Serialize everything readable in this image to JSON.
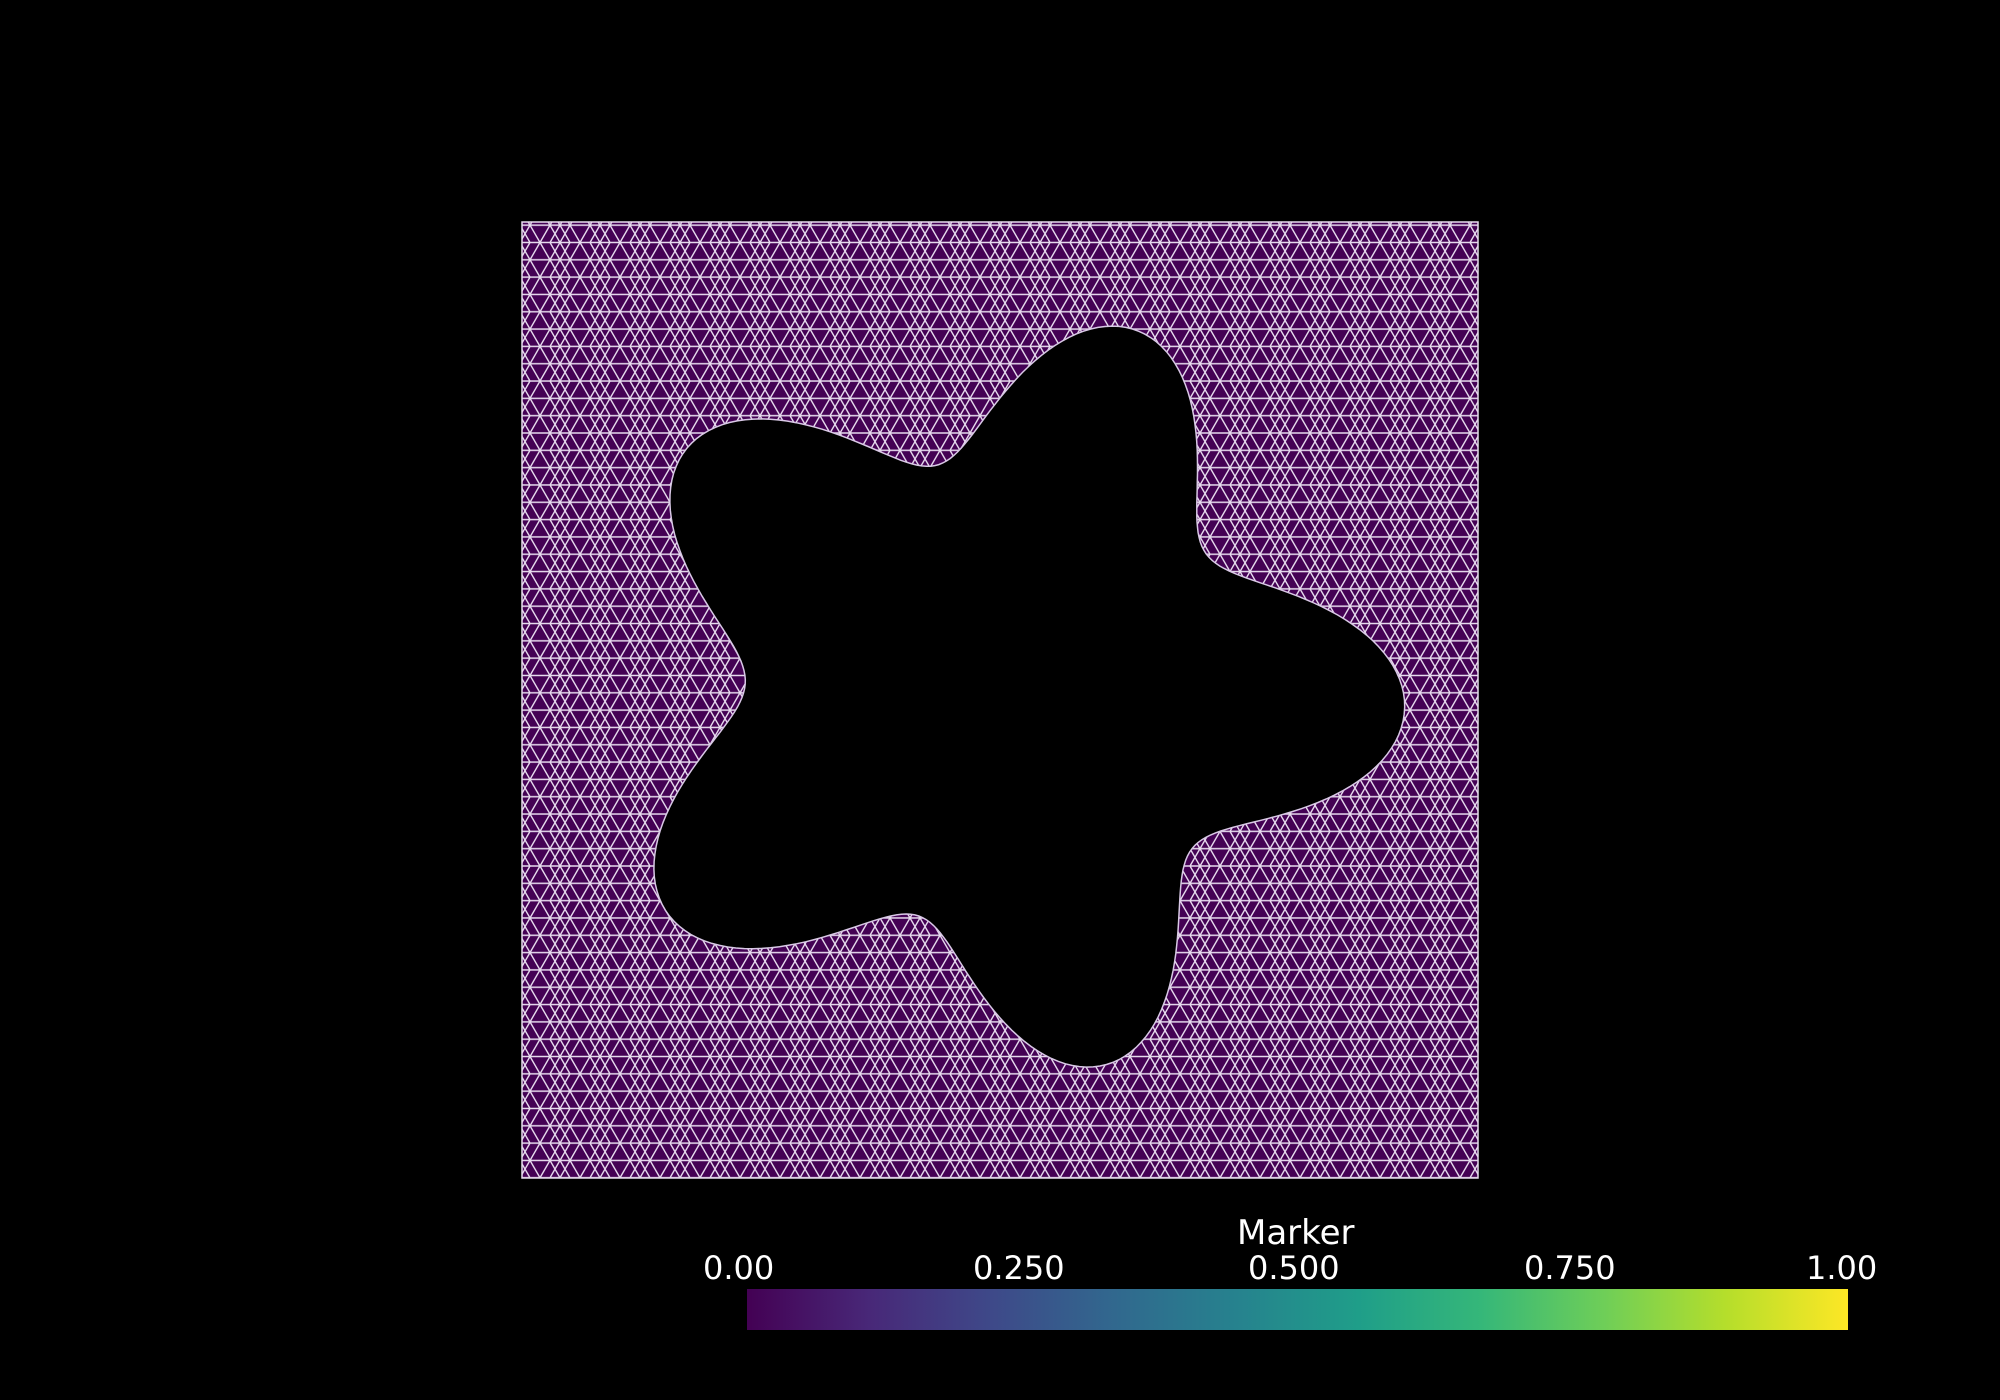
{
  "scalar_bar": {
    "title": "Marker",
    "ticks": [
      "0.00",
      "0.250",
      "0.500",
      "0.750",
      "1.00"
    ],
    "colormap": "viridis",
    "range": [
      0,
      1
    ]
  },
  "mesh": {
    "fill_color": "#440154",
    "edge_color": "#ffffff",
    "background_color": "#000000",
    "hole_lobes": 5
  }
}
